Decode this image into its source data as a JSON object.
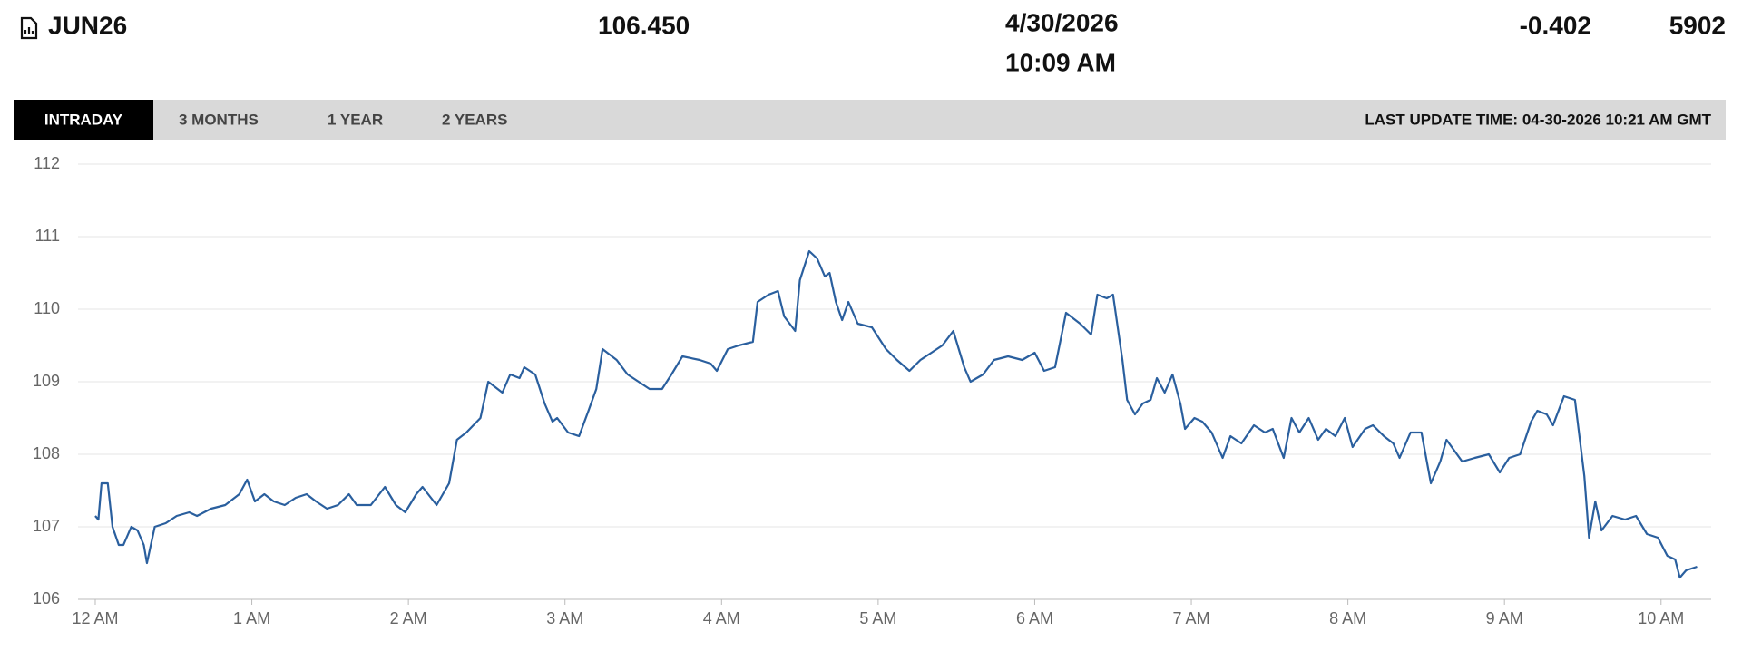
{
  "header": {
    "symbol": "JUN26",
    "last": "106.450",
    "date": "4/30/2026",
    "time": "10:09 AM",
    "change": "-0.402",
    "volume": "5902"
  },
  "tabs": [
    "INTRADAY",
    "3 MONTHS",
    "1 YEAR",
    "2 YEARS"
  ],
  "last_update": "LAST UPDATE TIME: 04-30-2026 10:21 AM GMT",
  "chart_data": {
    "type": "line",
    "color": "#2a5f9e",
    "grid": true,
    "xlim": [
      -0.11,
      10.32
    ],
    "ylim": [
      106,
      112
    ],
    "yticks": [
      106,
      107,
      108,
      109,
      110,
      111,
      112
    ],
    "xticks": [
      {
        "value": 0,
        "label": "12 AM"
      },
      {
        "value": 1,
        "label": "1 AM"
      },
      {
        "value": 2,
        "label": "2 AM"
      },
      {
        "value": 3,
        "label": "3 AM"
      },
      {
        "value": 4,
        "label": "4 AM"
      },
      {
        "value": 5,
        "label": "5 AM"
      },
      {
        "value": 6,
        "label": "6 AM"
      },
      {
        "value": 7,
        "label": "7 AM"
      },
      {
        "value": 8,
        "label": "8 AM"
      },
      {
        "value": 9,
        "label": "9 AM"
      },
      {
        "value": 10,
        "label": "10 AM"
      }
    ],
    "x": [
      0.0,
      0.02,
      0.04,
      0.08,
      0.11,
      0.15,
      0.18,
      0.23,
      0.27,
      0.31,
      0.33,
      0.36,
      0.38,
      0.45,
      0.52,
      0.6,
      0.65,
      0.74,
      0.83,
      0.92,
      0.97,
      1.02,
      1.08,
      1.14,
      1.21,
      1.28,
      1.35,
      1.41,
      1.48,
      1.55,
      1.62,
      1.67,
      1.76,
      1.85,
      1.92,
      1.98,
      2.05,
      2.09,
      2.18,
      2.26,
      2.31,
      2.37,
      2.46,
      2.51,
      2.6,
      2.65,
      2.71,
      2.74,
      2.81,
      2.87,
      2.92,
      2.95,
      3.02,
      3.09,
      3.15,
      3.2,
      3.24,
      3.33,
      3.4,
      3.47,
      3.54,
      3.62,
      3.68,
      3.75,
      3.86,
      3.93,
      3.97,
      4.04,
      4.11,
      4.2,
      4.23,
      4.3,
      4.36,
      4.4,
      4.47,
      4.5,
      4.56,
      4.61,
      4.66,
      4.69,
      4.73,
      4.77,
      4.81,
      4.87,
      4.96,
      5.05,
      5.12,
      5.2,
      5.27,
      5.34,
      5.41,
      5.48,
      5.55,
      5.59,
      5.67,
      5.74,
      5.83,
      5.92,
      6.0,
      6.06,
      6.13,
      6.2,
      6.29,
      6.36,
      6.4,
      6.46,
      6.5,
      6.56,
      6.59,
      6.64,
      6.69,
      6.74,
      6.78,
      6.83,
      6.88,
      6.93,
      6.96,
      7.02,
      7.07,
      7.13,
      7.2,
      7.25,
      7.32,
      7.4,
      7.47,
      7.52,
      7.59,
      7.64,
      7.69,
      7.75,
      7.81,
      7.86,
      7.92,
      7.98,
      8.03,
      8.11,
      8.16,
      8.23,
      8.29,
      8.33,
      8.4,
      8.47,
      8.53,
      8.59,
      8.63,
      8.73,
      8.81,
      8.9,
      8.97,
      9.03,
      9.1,
      9.17,
      9.21,
      9.27,
      9.31,
      9.38,
      9.45,
      9.51,
      9.54,
      9.58,
      9.62,
      9.69,
      9.77,
      9.84,
      9.91,
      9.98,
      10.04,
      10.09,
      10.12,
      10.16,
      10.23
    ],
    "values": [
      107.15,
      107.1,
      107.6,
      107.6,
      107.0,
      106.75,
      106.75,
      107.0,
      106.95,
      106.75,
      106.5,
      106.8,
      107.0,
      107.05,
      107.15,
      107.2,
      107.15,
      107.25,
      107.3,
      107.45,
      107.65,
      107.35,
      107.45,
      107.35,
      107.3,
      107.4,
      107.45,
      107.35,
      107.25,
      107.3,
      107.45,
      107.3,
      107.3,
      107.55,
      107.3,
      107.2,
      107.45,
      107.55,
      107.3,
      107.6,
      108.2,
      108.3,
      108.5,
      109.0,
      108.85,
      109.1,
      109.05,
      109.2,
      109.1,
      108.7,
      108.45,
      108.5,
      108.3,
      108.25,
      108.6,
      108.9,
      109.45,
      109.3,
      109.1,
      109.0,
      108.9,
      108.9,
      109.1,
      109.35,
      109.3,
      109.25,
      109.15,
      109.45,
      109.5,
      109.55,
      110.1,
      110.2,
      110.25,
      109.9,
      109.7,
      110.4,
      110.8,
      110.7,
      110.45,
      110.5,
      110.1,
      109.85,
      110.1,
      109.8,
      109.75,
      109.45,
      109.3,
      109.15,
      109.3,
      109.4,
      109.5,
      109.7,
      109.2,
      109.0,
      109.1,
      109.3,
      109.35,
      109.3,
      109.4,
      109.15,
      109.2,
      109.95,
      109.8,
      109.65,
      110.2,
      110.15,
      110.2,
      109.3,
      108.75,
      108.55,
      108.7,
      108.75,
      109.05,
      108.85,
      109.1,
      108.7,
      108.35,
      108.5,
      108.45,
      108.3,
      107.95,
      108.25,
      108.15,
      108.4,
      108.3,
      108.35,
      107.95,
      108.5,
      108.3,
      108.5,
      108.2,
      108.35,
      108.25,
      108.5,
      108.1,
      108.35,
      108.4,
      108.25,
      108.15,
      107.95,
      108.3,
      108.3,
      107.6,
      107.9,
      108.2,
      107.9,
      107.95,
      108.0,
      107.75,
      107.95,
      108.0,
      108.45,
      108.6,
      108.55,
      108.4,
      108.8,
      108.75,
      107.7,
      106.85,
      107.35,
      106.95,
      107.15,
      107.1,
      107.15,
      106.9,
      106.85,
      106.6,
      106.55,
      106.3,
      106.4,
      106.45
    ]
  }
}
